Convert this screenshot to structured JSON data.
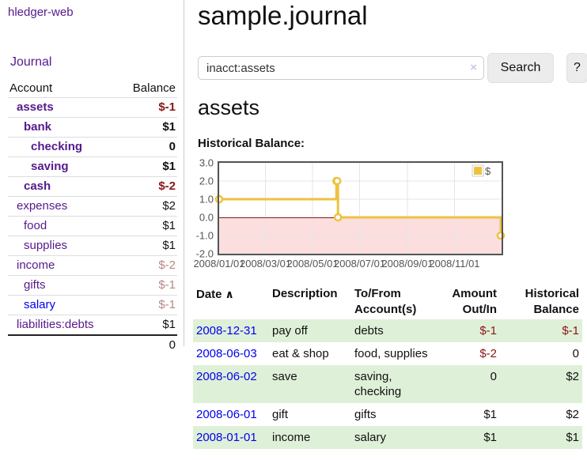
{
  "app": {
    "brand": "hledger-web"
  },
  "sidebar": {
    "journal_label": "Journal",
    "accounts_table": {
      "headers": {
        "account": "Account",
        "balance": "Balance"
      },
      "rows": [
        {
          "name": "assets",
          "indent": 0,
          "bold": true,
          "visited": true,
          "balance": "$-1",
          "balance_style": "neg"
        },
        {
          "name": "bank",
          "indent": 1,
          "bold": true,
          "visited": true,
          "balance": "$1",
          "balance_style": ""
        },
        {
          "name": "checking",
          "indent": 2,
          "bold": true,
          "visited": true,
          "balance": "0",
          "balance_style": ""
        },
        {
          "name": "saving",
          "indent": 2,
          "bold": true,
          "visited": true,
          "balance": "$1",
          "balance_style": ""
        },
        {
          "name": "cash",
          "indent": 1,
          "bold": true,
          "visited": true,
          "balance": "$-2",
          "balance_style": "neg"
        },
        {
          "name": "expenses",
          "indent": 0,
          "bold": false,
          "visited": true,
          "balance": "$2",
          "balance_style": ""
        },
        {
          "name": "food",
          "indent": 1,
          "bold": false,
          "visited": true,
          "balance": "$1",
          "balance_style": ""
        },
        {
          "name": "supplies",
          "indent": 1,
          "bold": false,
          "visited": true,
          "balance": "$1",
          "balance_style": ""
        },
        {
          "name": "income",
          "indent": 0,
          "bold": false,
          "visited": true,
          "balance": "$-2",
          "balance_style": "negmuted"
        },
        {
          "name": "gifts",
          "indent": 1,
          "bold": false,
          "visited": true,
          "balance": "$-1",
          "balance_style": "negmuted"
        },
        {
          "name": "salary",
          "indent": 1,
          "bold": false,
          "visited": false,
          "balance": "$-1",
          "balance_style": "negmuted"
        },
        {
          "name": "liabilities:debts",
          "indent": 0,
          "bold": false,
          "visited": true,
          "balance": "$1",
          "balance_style": ""
        }
      ],
      "total": "0"
    }
  },
  "main": {
    "title": "sample.journal",
    "search": {
      "value": "inacct:assets",
      "clear_icon": "×",
      "button_label": "Search",
      "help_label": "?"
    },
    "account_heading": "assets",
    "chart_label": "Historical Balance:"
  },
  "chart_data": {
    "type": "line",
    "step": true,
    "title": "Historical Balance:",
    "series": [
      {
        "name": "$",
        "color": "#edc240",
        "points": [
          {
            "date": "2008-01-01",
            "value": 1
          },
          {
            "date": "2008-06-01",
            "value": 2
          },
          {
            "date": "2008-06-02",
            "value": 2
          },
          {
            "date": "2008-06-03",
            "value": 0
          },
          {
            "date": "2008-12-31",
            "value": -1
          }
        ]
      }
    ],
    "x_range": [
      "2008-01-01",
      "2009-01-01"
    ],
    "y_range": [
      -2,
      3
    ],
    "x_ticks": [
      {
        "date": "2008-01-01",
        "label": "2008/01/01"
      },
      {
        "date": "2008-03-01",
        "label": "2008/03/01"
      },
      {
        "date": "2008-05-01",
        "label": "2008/05/01"
      },
      {
        "date": "2008-07-01",
        "label": "2008/07/01"
      },
      {
        "date": "2008-09-01",
        "label": "2008/09/01"
      },
      {
        "date": "2008-11-01",
        "label": "2008/11/01"
      }
    ],
    "y_ticks": [
      {
        "value": 3,
        "label": "3.0"
      },
      {
        "value": 2,
        "label": "2.0"
      },
      {
        "value": 1,
        "label": "1.0"
      },
      {
        "value": 0,
        "label": "0.0"
      },
      {
        "value": -1,
        "label": "-1.0"
      },
      {
        "value": -2,
        "label": "-2.0"
      }
    ],
    "legend": {
      "label": "$",
      "position": "top-right"
    },
    "grid": true,
    "colors": {
      "negative_region": "#fcdede",
      "zero_line": "#8b1c1c",
      "grid_line": "#e6e6e6",
      "border": "#545454",
      "axis_text": "#545454",
      "marker_fill": "#ffffff"
    }
  },
  "transactions": {
    "headers": [
      "Date",
      "Description",
      "To/From Account(s)",
      "Amount Out/In",
      "Historical Balance"
    ],
    "sort_indicator": "∧",
    "rows": [
      {
        "date": "2008-12-31",
        "description": "pay off",
        "accounts": "debts",
        "amount": "$-1",
        "amount_negative": true,
        "balance": "$-1",
        "balance_negative": true
      },
      {
        "date": "2008-06-03",
        "description": "eat & shop",
        "accounts": "food, supplies",
        "amount": "$-2",
        "amount_negative": true,
        "balance": "0",
        "balance_negative": false
      },
      {
        "date": "2008-06-02",
        "description": "save",
        "accounts": "saving, checking",
        "amount": "0",
        "amount_negative": false,
        "balance": "$2",
        "balance_negative": false
      },
      {
        "date": "2008-06-01",
        "description": "gift",
        "accounts": "gifts",
        "amount": "$1",
        "amount_negative": false,
        "balance": "$2",
        "balance_negative": false
      },
      {
        "date": "2008-01-01",
        "description": "income",
        "accounts": "salary",
        "amount": "$1",
        "amount_negative": false,
        "balance": "$1",
        "balance_negative": false
      }
    ]
  }
}
